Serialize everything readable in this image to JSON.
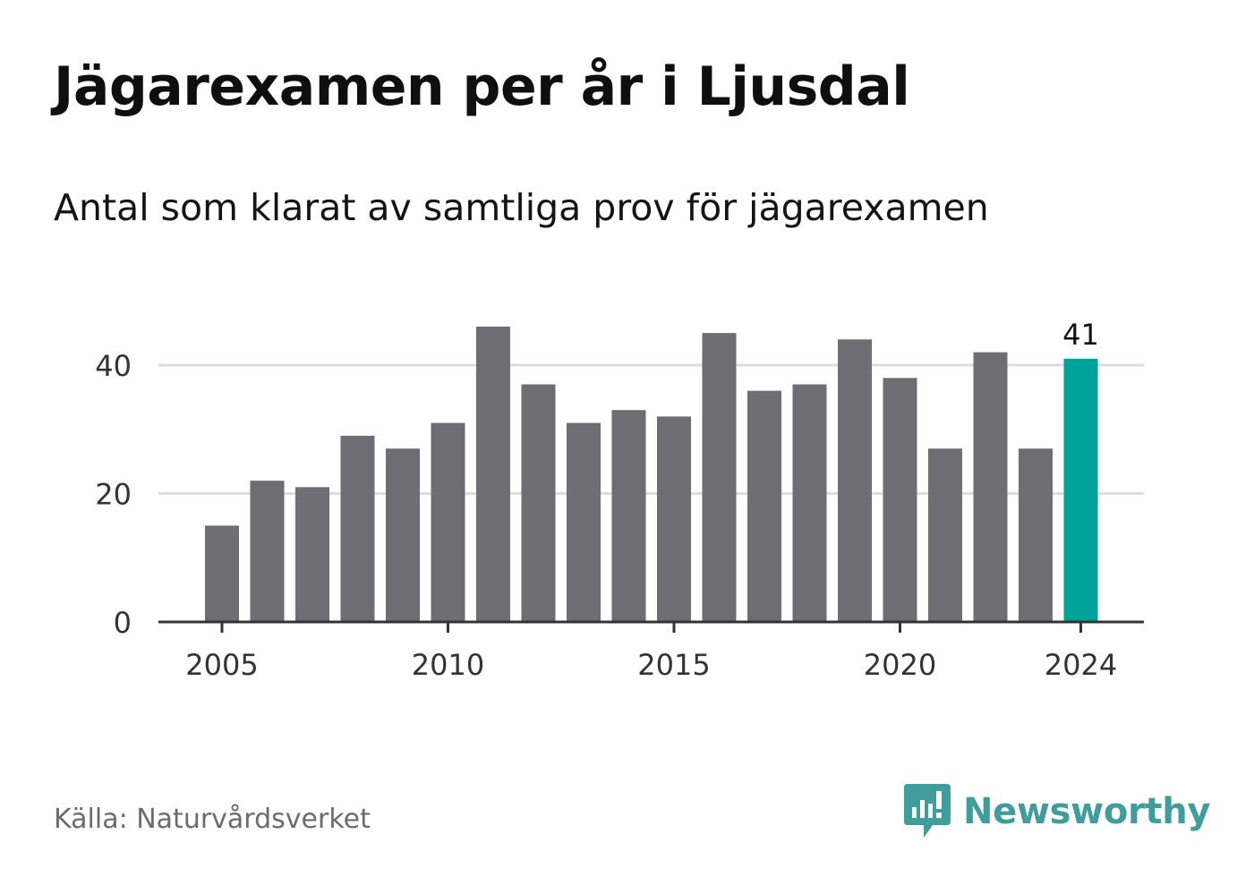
{
  "header": {
    "title": "Jägarexamen per år i Ljusdal",
    "subtitle": "Antal som klarat av samtliga prov för jägarexamen"
  },
  "footer": {
    "source": "Källa: Naturvårdsverket",
    "brand": "Newsworthy",
    "brand_icon": "bar-chart-speech-bubble-icon"
  },
  "colors": {
    "bar": "#6e6d73",
    "highlight": "#00a39a",
    "brand": "#3f9e9b",
    "grid": "#dcdcdc",
    "axis": "#333333"
  },
  "chart_data": {
    "type": "bar",
    "title": "Jägarexamen per år i Ljusdal",
    "subtitle": "Antal som klarat av samtliga prov för jägarexamen",
    "x": [
      2005,
      2006,
      2007,
      2008,
      2009,
      2010,
      2011,
      2012,
      2013,
      2014,
      2015,
      2016,
      2017,
      2018,
      2019,
      2020,
      2021,
      2022,
      2023,
      2024
    ],
    "values": [
      15,
      22,
      21,
      29,
      27,
      31,
      46,
      37,
      31,
      33,
      32,
      45,
      36,
      37,
      44,
      38,
      27,
      42,
      27,
      41
    ],
    "x_ticks": [
      2005,
      2010,
      2015,
      2020,
      2024
    ],
    "y_ticks": [
      0,
      20,
      40
    ],
    "ylim": [
      0,
      46
    ],
    "grid": true,
    "highlight_index": 19,
    "data_labels": [
      {
        "index": 19,
        "text": "41"
      }
    ]
  }
}
